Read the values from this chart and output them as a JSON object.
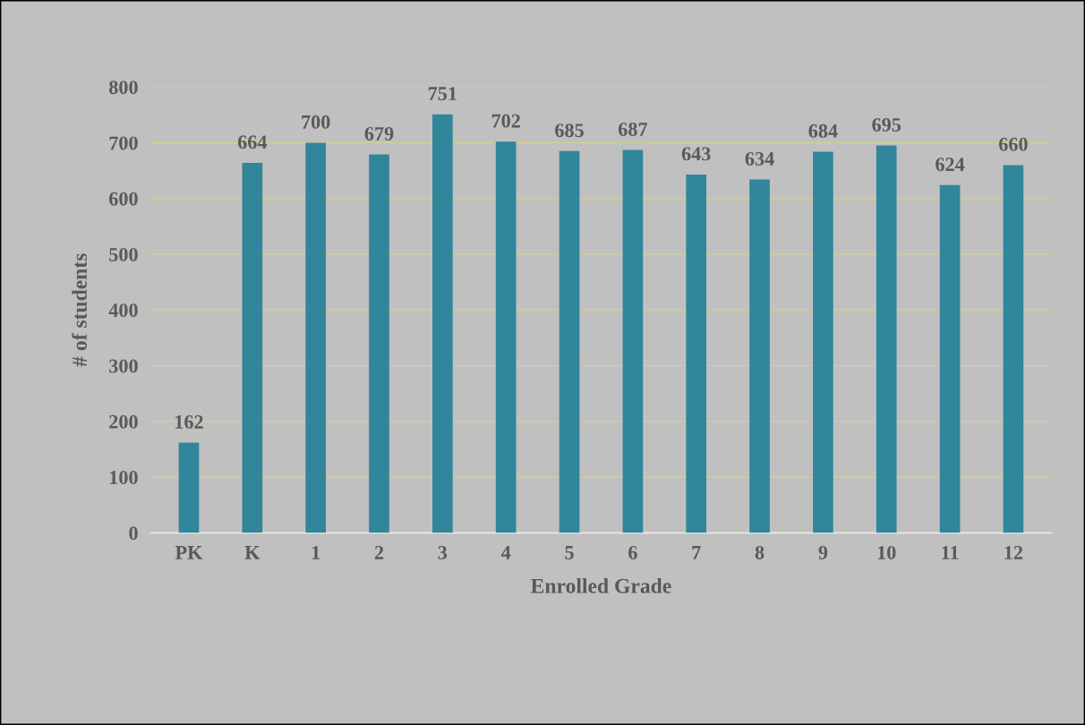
{
  "chart_data": {
    "type": "bar",
    "xlabel": "Enrolled Grade",
    "ylabel": "# of students",
    "categories": [
      "PK",
      "K",
      "1",
      "2",
      "3",
      "4",
      "5",
      "6",
      "7",
      "8",
      "9",
      "10",
      "11",
      "12"
    ],
    "values": [
      162,
      664,
      700,
      679,
      751,
      702,
      685,
      687,
      643,
      634,
      684,
      695,
      624,
      660
    ],
    "color": "#31869b",
    "ylim": [
      0,
      800
    ],
    "yticks": [
      0,
      100,
      200,
      300,
      400,
      500,
      600,
      700,
      800
    ],
    "grid": "y",
    "data_labels": true
  }
}
